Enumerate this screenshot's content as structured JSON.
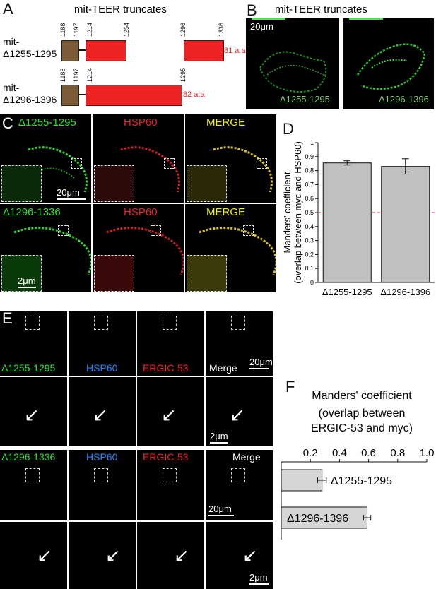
{
  "panel_a": {
    "label": "A",
    "title": "mit-TEER truncates",
    "construct1": {
      "name_line1": "mit-",
      "name_line2": "Δ1255-1295",
      "ticks": [
        "1188",
        "1197",
        "1214",
        "1254",
        "1296",
        "1336"
      ],
      "aa": "81 a.a"
    },
    "construct2": {
      "name_line1": "mit-",
      "name_line2": "Δ1296-1396",
      "ticks": [
        "1188",
        "1197",
        "1214",
        "1295"
      ],
      "aa": "82 a.a"
    }
  },
  "panel_b": {
    "label": "B",
    "title": "mit-TEER truncates",
    "scale": "20μm",
    "img1_label": "Δ1255-1295",
    "img2_label": "Δ1296-1396"
  },
  "panel_c": {
    "label": "C",
    "row1": {
      "ch1": "Δ1255-1295",
      "ch2": "HSP60",
      "ch3": "MERGE",
      "scale": "20μm"
    },
    "row2": {
      "ch1": "Δ1296-1336",
      "ch2": "HSP60",
      "ch3": "MERGE",
      "scale": "2μm"
    }
  },
  "panel_d": {
    "label": "D",
    "ylabel_line1": "Manders' coefficient",
    "ylabel_line2": "(overlap between myc and HSP60)",
    "yticks": [
      "0",
      "0.1",
      "0.2",
      "0.3",
      "0.4",
      "0.5",
      "0.6",
      "0.7",
      "0.8",
      "0.9",
      "1"
    ]
  },
  "panel_e": {
    "label": "E",
    "row1": {
      "ch1": "Δ1255-1295",
      "ch2": "HSP60",
      "ch3": "ERGIC-53",
      "ch4": "Merge",
      "scale": "20μm"
    },
    "row2": {
      "scale": "2μm"
    },
    "row3": {
      "ch1": "Δ1296-1336",
      "ch2": "HSP60",
      "ch3": "ERGIC-53",
      "ch4": "Merge",
      "scale": "20μm"
    },
    "row4": {
      "scale": "2μm"
    }
  },
  "panel_f": {
    "label": "F",
    "title_line1": "Manders' coefficient",
    "title_line2": "(overlap between",
    "title_line3": "ERGIC-53 and myc)",
    "xticks": [
      "0.2",
      "0.4",
      "0.6",
      "0.8",
      "1.0"
    ]
  },
  "chart_data": [
    {
      "type": "bar",
      "panel": "D",
      "categories": [
        "Δ1255-1295",
        "Δ1296-1396"
      ],
      "values": [
        0.855,
        0.83
      ],
      "errors": [
        0.015,
        0.055
      ],
      "reference_line": 0.5,
      "ylabel": "Manders' coefficient (overlap between myc and HSP60)",
      "ylim": [
        0,
        1
      ],
      "colors": {
        "bar": "#c0c0c0",
        "reference": "#e03030"
      }
    },
    {
      "type": "bar",
      "orientation": "horizontal",
      "panel": "F",
      "categories": [
        "Δ1255-1295",
        "Δ1296-1396"
      ],
      "values": [
        0.28,
        0.59
      ],
      "errors": [
        0.03,
        0.025
      ],
      "title": "Manders' coefficient (overlap between ERGIC-53 and myc)",
      "xlim": [
        0,
        1.0
      ],
      "colors": {
        "bar": "#d6d6d6"
      }
    }
  ]
}
